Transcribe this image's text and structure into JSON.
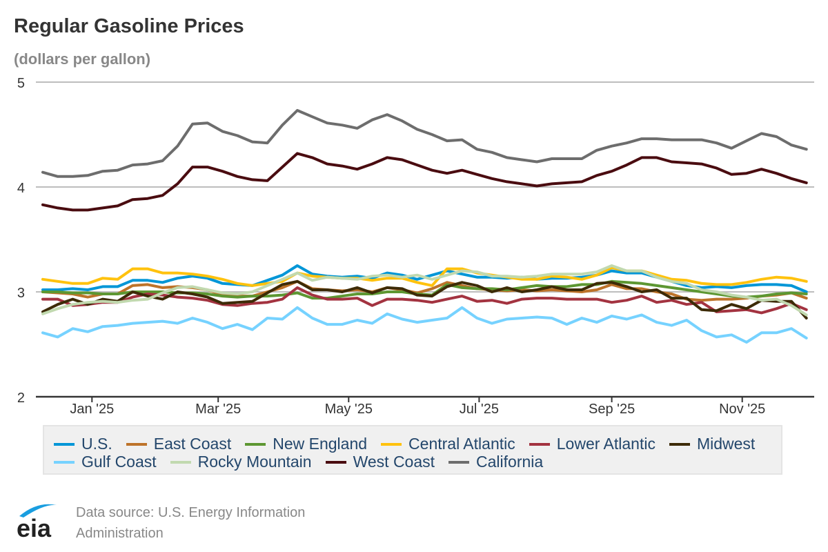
{
  "header": {
    "title": "Regular Gasoline Prices",
    "subtitle": "(dollars per gallon)"
  },
  "footer": {
    "logo_text": "eia",
    "source_line1": "Data source: U.S. Energy Information",
    "source_line2": "Administration"
  },
  "colors": {
    "axis": "#333333",
    "grid": "#bdbdbd",
    "legend_text": "#23466b",
    "logo_arc": "#1a9ee0"
  },
  "chart_data": {
    "type": "line",
    "title": "Regular Gasoline Prices",
    "subtitle": "(dollars per gallon)",
    "xlabel": "",
    "ylabel": "dollars per gallon",
    "ylim": [
      2,
      5
    ],
    "yticks": [
      2,
      3,
      4,
      5
    ],
    "x_start": "2024-12-09",
    "x_interval": "weekly",
    "x_tick_labels": [
      "Jan '25",
      "Mar '25",
      "May '25",
      "Jul '25",
      "Sep '25",
      "Nov '25"
    ],
    "x_tick_dates": [
      "2025-01-01",
      "2025-03-01",
      "2025-05-01",
      "2025-07-01",
      "2025-09-01",
      "2025-11-01"
    ],
    "grid": "horizontal",
    "legend_position": "bottom",
    "series": [
      {
        "name": "U.S.",
        "color": "#0096d7",
        "values": [
          3.02,
          3.02,
          3.03,
          3.02,
          3.05,
          3.05,
          3.11,
          3.11,
          3.09,
          3.13,
          3.15,
          3.13,
          3.08,
          3.07,
          3.06,
          3.11,
          3.16,
          3.25,
          3.17,
          3.15,
          3.14,
          3.15,
          3.13,
          3.18,
          3.16,
          3.12,
          3.16,
          3.2,
          3.17,
          3.14,
          3.14,
          3.13,
          3.14,
          3.12,
          3.13,
          3.13,
          3.14,
          3.16,
          3.2,
          3.18,
          3.18,
          3.14,
          3.1,
          3.06,
          3.04,
          3.05,
          3.04,
          3.06,
          3.07,
          3.07,
          3.06,
          3.0
        ]
      },
      {
        "name": "East Coast",
        "color": "#bd732a",
        "values": [
          3.0,
          2.99,
          2.98,
          2.95,
          2.98,
          2.98,
          3.06,
          3.07,
          3.04,
          3.05,
          3.04,
          3.02,
          2.97,
          2.96,
          2.96,
          3.0,
          3.04,
          3.1,
          3.03,
          3.02,
          3.01,
          3.02,
          3.0,
          3.04,
          3.02,
          2.99,
          3.03,
          3.09,
          3.06,
          3.03,
          3.02,
          3.01,
          3.02,
          3.01,
          3.02,
          3.01,
          3.0,
          3.02,
          3.07,
          3.03,
          3.03,
          3.0,
          2.98,
          2.93,
          2.92,
          2.93,
          2.93,
          2.94,
          2.96,
          2.97,
          2.99,
          2.94
        ]
      },
      {
        "name": "New England",
        "color": "#5d9732",
        "values": [
          3.0,
          3.0,
          2.99,
          2.99,
          2.98,
          2.98,
          3.0,
          3.0,
          3.0,
          2.99,
          2.99,
          2.98,
          2.96,
          2.95,
          2.96,
          2.96,
          2.97,
          2.99,
          2.94,
          2.94,
          2.96,
          2.98,
          2.98,
          3.0,
          3.0,
          2.98,
          2.97,
          3.07,
          3.04,
          3.03,
          3.03,
          3.02,
          3.04,
          3.06,
          3.05,
          3.05,
          3.07,
          3.07,
          3.1,
          3.09,
          3.08,
          3.06,
          3.04,
          3.02,
          3.0,
          2.98,
          2.96,
          2.95,
          2.96,
          2.98,
          2.99,
          2.98
        ]
      },
      {
        "name": "Central Atlantic",
        "color": "#ffc20e",
        "values": [
          3.12,
          3.1,
          3.08,
          3.08,
          3.13,
          3.12,
          3.22,
          3.22,
          3.18,
          3.18,
          3.17,
          3.15,
          3.12,
          3.08,
          3.06,
          3.08,
          3.1,
          3.18,
          3.15,
          3.14,
          3.13,
          3.13,
          3.11,
          3.13,
          3.13,
          3.09,
          3.06,
          3.22,
          3.22,
          3.18,
          3.16,
          3.14,
          3.12,
          3.12,
          3.15,
          3.14,
          3.12,
          3.16,
          3.23,
          3.2,
          3.2,
          3.16,
          3.12,
          3.11,
          3.08,
          3.07,
          3.07,
          3.09,
          3.12,
          3.14,
          3.13,
          3.1
        ]
      },
      {
        "name": "Lower Atlantic",
        "color": "#a33340",
        "values": [
          2.93,
          2.93,
          2.87,
          2.88,
          2.9,
          2.9,
          2.95,
          2.98,
          2.97,
          2.95,
          2.94,
          2.92,
          2.88,
          2.87,
          2.89,
          2.9,
          2.93,
          3.04,
          2.97,
          2.93,
          2.93,
          2.94,
          2.87,
          2.93,
          2.93,
          2.92,
          2.9,
          2.93,
          2.96,
          2.91,
          2.92,
          2.89,
          2.93,
          2.94,
          2.94,
          2.93,
          2.93,
          2.93,
          2.9,
          2.92,
          2.96,
          2.9,
          2.92,
          2.88,
          2.9,
          2.81,
          2.82,
          2.83,
          2.8,
          2.84,
          2.89,
          2.83
        ]
      },
      {
        "name": "Midwest",
        "color": "#3d2b07",
        "values": [
          2.81,
          2.88,
          2.93,
          2.88,
          2.93,
          2.91,
          3.0,
          2.96,
          2.93,
          3.0,
          2.98,
          2.95,
          2.89,
          2.9,
          2.91,
          2.99,
          3.07,
          3.1,
          3.02,
          3.02,
          3.0,
          3.04,
          2.99,
          3.04,
          3.03,
          2.97,
          2.96,
          3.05,
          3.09,
          3.06,
          3.0,
          3.04,
          3.0,
          3.02,
          3.05,
          3.02,
          3.02,
          3.08,
          3.09,
          3.05,
          3.0,
          3.02,
          2.94,
          2.94,
          2.83,
          2.82,
          2.88,
          2.84,
          2.92,
          2.91,
          2.91,
          2.75
        ]
      },
      {
        "name": "Gulf Coast",
        "color": "#76d2ff",
        "values": [
          2.61,
          2.57,
          2.65,
          2.62,
          2.67,
          2.68,
          2.7,
          2.71,
          2.72,
          2.7,
          2.75,
          2.71,
          2.65,
          2.69,
          2.64,
          2.75,
          2.74,
          2.85,
          2.75,
          2.69,
          2.69,
          2.73,
          2.7,
          2.79,
          2.74,
          2.71,
          2.73,
          2.75,
          2.85,
          2.75,
          2.7,
          2.74,
          2.75,
          2.76,
          2.75,
          2.69,
          2.75,
          2.71,
          2.77,
          2.74,
          2.78,
          2.71,
          2.68,
          2.73,
          2.63,
          2.57,
          2.59,
          2.52,
          2.61,
          2.61,
          2.65,
          2.56
        ]
      },
      {
        "name": "Rocky Mountain",
        "color": "#c1d9af",
        "values": [
          2.79,
          2.84,
          2.88,
          2.9,
          2.91,
          2.9,
          2.92,
          2.93,
          2.99,
          3.04,
          3.05,
          3.02,
          2.99,
          2.98,
          3.0,
          3.06,
          3.12,
          3.18,
          3.11,
          3.14,
          3.13,
          3.12,
          3.15,
          3.16,
          3.14,
          3.16,
          3.12,
          3.16,
          3.2,
          3.19,
          3.15,
          3.15,
          3.14,
          3.15,
          3.17,
          3.17,
          3.17,
          3.19,
          3.25,
          3.2,
          3.2,
          3.14,
          3.1,
          3.08,
          3.02,
          3.0,
          2.97,
          2.95,
          2.92,
          2.93,
          2.87,
          2.78
        ]
      },
      {
        "name": "West Coast",
        "color": "#4a0c10",
        "values": [
          3.83,
          3.8,
          3.78,
          3.78,
          3.8,
          3.82,
          3.88,
          3.89,
          3.92,
          4.03,
          4.19,
          4.19,
          4.15,
          4.1,
          4.07,
          4.06,
          4.19,
          4.32,
          4.28,
          4.22,
          4.2,
          4.17,
          4.22,
          4.28,
          4.26,
          4.21,
          4.16,
          4.13,
          4.16,
          4.12,
          4.08,
          4.05,
          4.03,
          4.01,
          4.03,
          4.04,
          4.05,
          4.11,
          4.15,
          4.21,
          4.28,
          4.28,
          4.24,
          4.23,
          4.22,
          4.18,
          4.12,
          4.13,
          4.17,
          4.13,
          4.08,
          4.04
        ]
      },
      {
        "name": "California",
        "color": "#6d6d6d",
        "values": [
          4.14,
          4.1,
          4.1,
          4.11,
          4.15,
          4.16,
          4.21,
          4.22,
          4.25,
          4.39,
          4.6,
          4.61,
          4.53,
          4.49,
          4.43,
          4.42,
          4.59,
          4.73,
          4.67,
          4.61,
          4.59,
          4.56,
          4.64,
          4.69,
          4.63,
          4.55,
          4.5,
          4.44,
          4.45,
          4.36,
          4.33,
          4.28,
          4.26,
          4.24,
          4.27,
          4.27,
          4.27,
          4.35,
          4.39,
          4.42,
          4.46,
          4.46,
          4.45,
          4.45,
          4.45,
          4.42,
          4.37,
          4.44,
          4.51,
          4.48,
          4.4,
          4.36
        ]
      }
    ]
  }
}
